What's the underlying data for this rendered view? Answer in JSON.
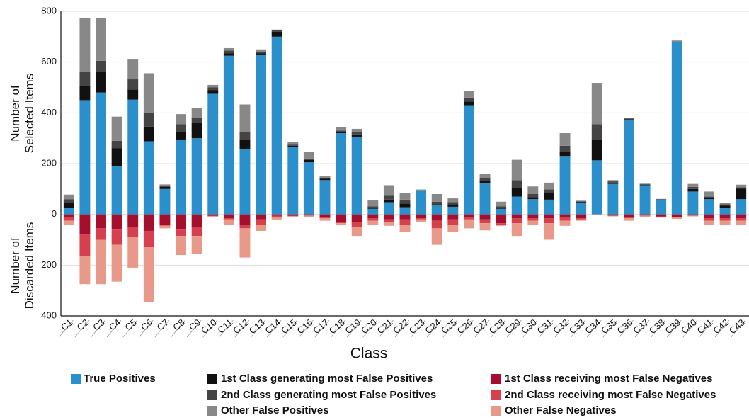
{
  "chart_data": {
    "type": "bar",
    "stacked": true,
    "ylabel_selected": "Number of Selected Items",
    "ylabel_discarded": "Number of Discarded Items",
    "xlabel": "Class",
    "categories": [
      "C1",
      "C2",
      "C3",
      "C4",
      "C5",
      "C6",
      "C7",
      "C8",
      "C9",
      "C10",
      "C11",
      "C12",
      "C13",
      "C14",
      "C15",
      "C16",
      "C17",
      "C18",
      "C19",
      "C20",
      "C21",
      "C22",
      "C23",
      "C24",
      "C25",
      "C26",
      "C27",
      "C28",
      "C29",
      "C30",
      "C31",
      "C32",
      "C33",
      "C34",
      "C35",
      "C36",
      "C37",
      "C38",
      "C39",
      "C40",
      "C41",
      "C42",
      "C43"
    ],
    "ylim": [
      -400,
      800
    ],
    "yticks": [
      {
        "value": -400,
        "label": "400"
      },
      {
        "value": -200,
        "label": "200"
      },
      0,
      200,
      400,
      600,
      800
    ],
    "grid": true,
    "series": [
      {
        "name": "True Positives",
        "color": "#2b8fcb",
        "values": [
          25,
          450,
          480,
          190,
          452,
          288,
          100,
          295,
          300,
          475,
          625,
          258,
          630,
          700,
          265,
          205,
          135,
          320,
          305,
          22,
          48,
          28,
          95,
          35,
          30,
          430,
          122,
          22,
          70,
          60,
          58,
          230,
          45,
          213,
          120,
          370,
          115,
          55,
          680,
          90,
          60,
          25,
          60
        ]
      },
      {
        "name": "1st Class generating most False Positives",
        "color": "#111111",
        "values": [
          20,
          55,
          80,
          70,
          40,
          58,
          8,
          30,
          60,
          15,
          10,
          35,
          5,
          20,
          5,
          10,
          5,
          5,
          10,
          5,
          10,
          15,
          0,
          5,
          10,
          15,
          10,
          5,
          35,
          8,
          25,
          15,
          3,
          80,
          5,
          5,
          2,
          2,
          0,
          10,
          5,
          10,
          42
        ]
      },
      {
        "name": "2nd Class generating most False Positives",
        "color": "#444444",
        "values": [
          15,
          55,
          45,
          30,
          40,
          55,
          5,
          30,
          20,
          10,
          10,
          30,
          5,
          5,
          5,
          5,
          5,
          5,
          10,
          5,
          15,
          15,
          0,
          10,
          8,
          15,
          10,
          5,
          30,
          12,
          15,
          25,
          3,
          62,
          5,
          3,
          2,
          2,
          0,
          8,
          5,
          5,
          5
        ]
      },
      {
        "name": "Other False Positives",
        "color": "#888888",
        "values": [
          18,
          215,
          170,
          95,
          78,
          155,
          5,
          40,
          38,
          10,
          10,
          110,
          10,
          3,
          10,
          25,
          5,
          15,
          12,
          23,
          42,
          25,
          3,
          30,
          15,
          25,
          18,
          18,
          80,
          30,
          27,
          50,
          3,
          163,
          5,
          2,
          2,
          2,
          5,
          12,
          20,
          5,
          10
        ]
      },
      {
        "name": "1st Class receiving most False Negatives",
        "color": "#a50f2d",
        "values": [
          -10,
          -80,
          -55,
          -60,
          -50,
          -65,
          -40,
          -60,
          -50,
          -5,
          -15,
          -40,
          -20,
          -5,
          -5,
          -3,
          -10,
          -30,
          -30,
          -15,
          -20,
          -20,
          -15,
          -25,
          -20,
          -10,
          -20,
          -35,
          -15,
          -15,
          -15,
          -10,
          -15,
          0,
          -5,
          -10,
          -3,
          -8,
          -10,
          -3,
          -15,
          -15,
          -15
        ]
      },
      {
        "name": "2nd Class receiving most False Negatives",
        "color": "#d6404e",
        "values": [
          -15,
          -85,
          -45,
          -60,
          -40,
          -65,
          -5,
          -25,
          -35,
          -2,
          -5,
          -15,
          -20,
          -5,
          -2,
          -2,
          -5,
          -5,
          -20,
          -10,
          -10,
          -20,
          -5,
          -30,
          -20,
          -10,
          -15,
          -5,
          -20,
          -10,
          -20,
          -15,
          -5,
          0,
          0,
          -5,
          -2,
          -2,
          -3,
          -2,
          -10,
          -10,
          -10
        ]
      },
      {
        "name": "Other False Negatives",
        "color": "#e8998a",
        "values": [
          -15,
          -110,
          -175,
          -145,
          -120,
          -215,
          -10,
          -75,
          -70,
          -3,
          -20,
          -115,
          -25,
          -10,
          -3,
          -5,
          -10,
          -5,
          -35,
          -15,
          -15,
          -30,
          -10,
          -65,
          -30,
          -35,
          -28,
          -5,
          -50,
          -15,
          -65,
          -20,
          -5,
          -2,
          -3,
          -10,
          -5,
          -3,
          -5,
          -3,
          -15,
          -15,
          -15
        ]
      }
    ]
  }
}
